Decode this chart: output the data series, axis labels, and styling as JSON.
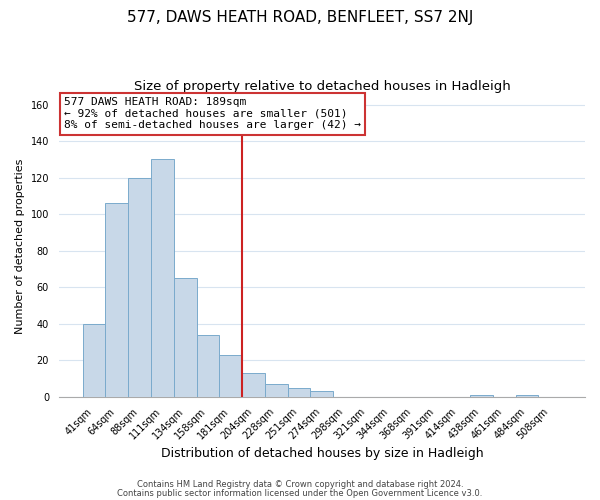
{
  "title": "577, DAWS HEATH ROAD, BENFLEET, SS7 2NJ",
  "subtitle": "Size of property relative to detached houses in Hadleigh",
  "xlabel": "Distribution of detached houses by size in Hadleigh",
  "ylabel": "Number of detached properties",
  "bar_labels": [
    "41sqm",
    "64sqm",
    "88sqm",
    "111sqm",
    "134sqm",
    "158sqm",
    "181sqm",
    "204sqm",
    "228sqm",
    "251sqm",
    "274sqm",
    "298sqm",
    "321sqm",
    "344sqm",
    "368sqm",
    "391sqm",
    "414sqm",
    "438sqm",
    "461sqm",
    "484sqm",
    "508sqm"
  ],
  "bar_values": [
    40,
    106,
    120,
    130,
    65,
    34,
    23,
    13,
    7,
    5,
    3,
    0,
    0,
    0,
    0,
    0,
    0,
    1,
    0,
    1,
    0
  ],
  "bar_color": "#c8d8e8",
  "bar_edge_color": "#7aaacc",
  "vline_color": "#cc2222",
  "annotation_title": "577 DAWS HEATH ROAD: 189sqm",
  "annotation_line1": "← 92% of detached houses are smaller (501)",
  "annotation_line2": "8% of semi-detached houses are larger (42) →",
  "annotation_box_color": "white",
  "annotation_box_edge": "#cc3333",
  "ylim": [
    0,
    165
  ],
  "yticks": [
    0,
    20,
    40,
    60,
    80,
    100,
    120,
    140,
    160
  ],
  "footer1": "Contains HM Land Registry data © Crown copyright and database right 2024.",
  "footer2": "Contains public sector information licensed under the Open Government Licence v3.0.",
  "background_color": "#ffffff",
  "grid_color": "#d8e4f0",
  "title_fontsize": 11,
  "subtitle_fontsize": 9.5,
  "ylabel_fontsize": 8,
  "xlabel_fontsize": 9,
  "tick_fontsize": 7,
  "footer_fontsize": 6,
  "ann_fontsize": 8
}
